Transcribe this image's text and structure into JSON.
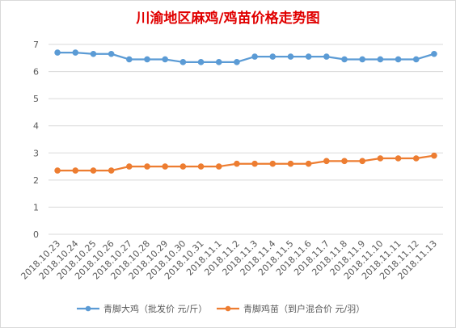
{
  "chart_data": {
    "type": "line",
    "title": "川渝地区麻鸡/鸡苗价格走势图",
    "x": [
      "2018.10.23",
      "2018.10.24",
      "2018.10.25",
      "2018.10.26",
      "2018.10.27",
      "2018.10.28",
      "2018.10.29",
      "2018.10.30",
      "2018.10.31",
      "2018.11.1",
      "2018.11.2",
      "2018.11.3",
      "2018.11.4",
      "2018.11.5",
      "2018.11.6",
      "2018.11.7",
      "2018.11.8",
      "2018.11.9",
      "2018.11.10",
      "2018.11.11",
      "2018.11.12",
      "2018.11.13"
    ],
    "ylim": [
      0,
      7
    ],
    "yticks": [
      0,
      1,
      2,
      3,
      4,
      5,
      6,
      7
    ],
    "grid": true,
    "legend_position": "bottom",
    "series": [
      {
        "name": "青脚大鸡（批发价 元/斤）",
        "color": "#5b9bd5",
        "values": [
          6.7,
          6.7,
          6.65,
          6.65,
          6.45,
          6.45,
          6.45,
          6.35,
          6.35,
          6.35,
          6.35,
          6.55,
          6.55,
          6.55,
          6.55,
          6.55,
          6.45,
          6.45,
          6.45,
          6.45,
          6.45,
          6.65
        ]
      },
      {
        "name": "青脚鸡苗（到户混合价 元/羽）",
        "color": "#ed7d31",
        "values": [
          2.35,
          2.35,
          2.35,
          2.35,
          2.5,
          2.5,
          2.5,
          2.5,
          2.5,
          2.5,
          2.6,
          2.6,
          2.6,
          2.6,
          2.6,
          2.7,
          2.7,
          2.7,
          2.8,
          2.8,
          2.8,
          2.9
        ]
      }
    ]
  }
}
